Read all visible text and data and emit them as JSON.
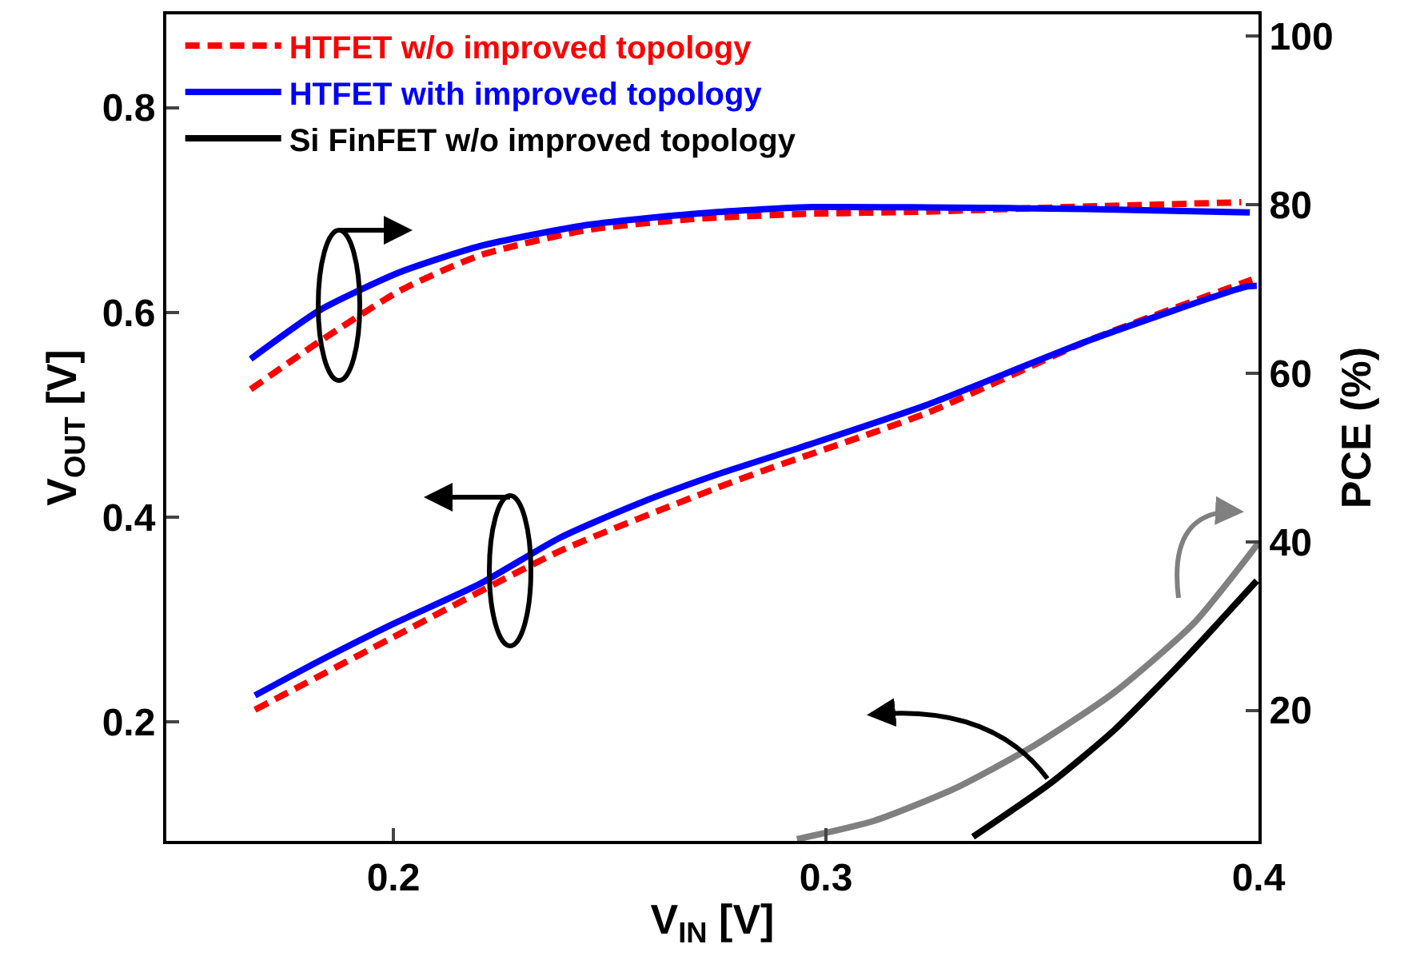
{
  "chart_data": {
    "type": "line",
    "xlabel": "V$_{IN}$ [V]",
    "ylabel": "V$_{OUT}$ [V]",
    "y2label": "PCE (%)",
    "xlim": [
      0.1475,
      0.4
    ],
    "xticks": [
      0.2,
      0.3,
      0.4
    ],
    "ylim": [
      0.084,
      0.891
    ],
    "yticks": [
      0.2,
      0.4,
      0.6,
      0.8
    ],
    "y2lim": [
      4.5,
      102.6
    ],
    "y2ticks": [
      20,
      40,
      60,
      80,
      100
    ],
    "legend": "top left",
    "grid": false,
    "series": [
      {
        "name": "HTFET w/o improved topology",
        "color": "#ff0000",
        "line_style": "dashed",
        "x": [
          0.168,
          0.2,
          0.2385,
          0.275,
          0.2865,
          0.3235,
          0.3604,
          0.3985
        ],
        "values": [
          0.212,
          0.283,
          0.367,
          0.429,
          0.447,
          0.502,
          0.572,
          0.632
        ]
      },
      {
        "name": "HTFET with improved topology",
        "color": "#0000ff",
        "line_style": "solid",
        "x": [
          0.168,
          0.183,
          0.2,
          0.22,
          0.2385,
          0.257,
          0.275,
          0.294,
          0.3235,
          0.3604,
          0.397,
          0.3996
        ],
        "values": [
          0.226,
          0.26,
          0.296,
          0.335,
          0.38,
          0.414,
          0.442,
          0.468,
          0.51,
          0.572,
          0.625,
          0.626
        ]
      },
      {
        "name": "Si FinFET w/o improved topology",
        "color": "#000000",
        "line_style": "solid",
        "x": [
          0.334,
          0.3518,
          0.3666,
          0.3826,
          0.3996
        ],
        "values": [
          0.088,
          0.14,
          0.192,
          0.26,
          0.338
        ]
      },
      {
        "color": "#ff0000",
        "line_style": "dashed",
        "axis": "y2",
        "x": [
          0.167,
          0.183,
          0.2015,
          0.22,
          0.2446,
          0.269,
          0.294,
          0.3235,
          0.3604,
          0.396
        ],
        "values": [
          58.1,
          63.8,
          69.8,
          74.0,
          77.0,
          78.3,
          78.9,
          79.2,
          79.8,
          80.3
        ]
      },
      {
        "color": "#0000ff",
        "line_style": "solid",
        "axis": "y2",
        "x": [
          0.167,
          0.183,
          0.2015,
          0.22,
          0.2446,
          0.269,
          0.294,
          0.3235,
          0.3604,
          0.398
        ],
        "values": [
          61.7,
          67.5,
          72.0,
          75.1,
          77.6,
          78.9,
          79.7,
          79.7,
          79.5,
          79.1
        ]
      },
      {
        "color": "#808080",
        "line_style": "solid",
        "axis": "y2",
        "x": [
          0.2933,
          0.3112,
          0.3297,
          0.3481,
          0.3666,
          0.385,
          0.3999
        ],
        "values": [
          4.7,
          6.9,
          10.7,
          15.8,
          22.1,
          30.3,
          39.8
        ]
      }
    ]
  }
}
